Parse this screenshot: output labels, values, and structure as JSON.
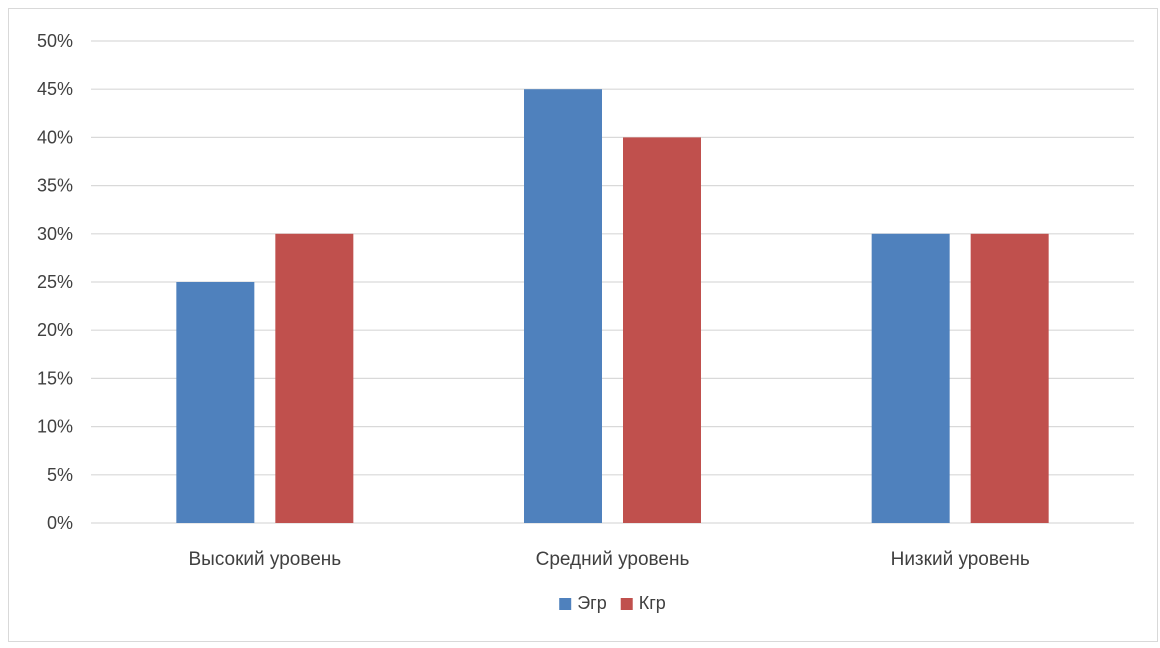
{
  "chart_data": {
    "type": "bar",
    "title": "",
    "xlabel": "",
    "ylabel": "",
    "categories": [
      "Высокий уровень",
      "Средний уровень",
      "Низкий уровень"
    ],
    "series": [
      {
        "name": "Эгр",
        "values": [
          25,
          45,
          30
        ],
        "color": "#4f81bd"
      },
      {
        "name": "Кгр",
        "values": [
          30,
          40,
          30
        ],
        "color": "#c0504d"
      }
    ],
    "ylim": [
      0,
      50
    ],
    "yticks": [
      "0%",
      "5%",
      "10%",
      "15%",
      "20%",
      "25%",
      "30%",
      "35%",
      "40%",
      "45%",
      "50%"
    ],
    "grid": true,
    "legend_position": "bottom-center"
  }
}
